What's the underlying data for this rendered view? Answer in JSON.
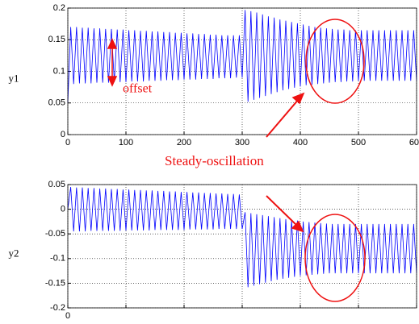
{
  "chart_data": [
    {
      "type": "line",
      "ylabel": "y1",
      "color": "#0000ff",
      "xlim": [
        0,
        600
      ],
      "xticks": [
        0,
        100,
        200,
        300,
        400,
        500,
        600
      ],
      "ylim": [
        0,
        0.2
      ],
      "yticks": [
        0,
        0.05,
        0.1,
        0.15,
        0.2
      ],
      "grid": true,
      "annotations": [
        "offset",
        "Steady-oscillation"
      ],
      "x": [
        0,
        5,
        10,
        15,
        20,
        25,
        30,
        35,
        40,
        45,
        50,
        55,
        60,
        65,
        70,
        75,
        80,
        85,
        90,
        95,
        100,
        105,
        110,
        115,
        120,
        125,
        130,
        135,
        140,
        145,
        150,
        155,
        160,
        165,
        170,
        175,
        180,
        185,
        190,
        195,
        200,
        205,
        210,
        215,
        220,
        225,
        230,
        235,
        240,
        245,
        250,
        255,
        260,
        265,
        270,
        275,
        280,
        285,
        290,
        295,
        300,
        305,
        310,
        315,
        320,
        325,
        330,
        335,
        340,
        345,
        350,
        355,
        360,
        365,
        370,
        375,
        380,
        385,
        390,
        395,
        400,
        405,
        410,
        415,
        420,
        425,
        430,
        435,
        440,
        445,
        450,
        455,
        460,
        465,
        470,
        475,
        480,
        485,
        490,
        495,
        500,
        505,
        510,
        515,
        520,
        525,
        530,
        535,
        540,
        545,
        550,
        555,
        560,
        565,
        570,
        575,
        580,
        585,
        590,
        595,
        600
      ],
      "values": [
        0.05,
        0.17,
        0.08,
        0.17,
        0.081,
        0.169,
        0.081,
        0.169,
        0.081,
        0.168,
        0.082,
        0.168,
        0.082,
        0.167,
        0.082,
        0.167,
        0.083,
        0.166,
        0.083,
        0.166,
        0.083,
        0.165,
        0.084,
        0.165,
        0.084,
        0.164,
        0.084,
        0.164,
        0.085,
        0.163,
        0.085,
        0.163,
        0.085,
        0.162,
        0.086,
        0.162,
        0.086,
        0.161,
        0.086,
        0.161,
        0.087,
        0.16,
        0.087,
        0.16,
        0.087,
        0.159,
        0.088,
        0.159,
        0.088,
        0.158,
        0.088,
        0.158,
        0.089,
        0.157,
        0.089,
        0.157,
        0.089,
        0.157,
        0.09,
        0.157,
        0.09,
        0.197,
        0.052,
        0.195,
        0.055,
        0.193,
        0.058,
        0.19,
        0.061,
        0.187,
        0.064,
        0.185,
        0.067,
        0.182,
        0.07,
        0.18,
        0.072,
        0.178,
        0.074,
        0.176,
        0.076,
        0.174,
        0.078,
        0.172,
        0.079,
        0.17,
        0.08,
        0.169,
        0.081,
        0.168,
        0.082,
        0.167,
        0.083,
        0.166,
        0.083,
        0.166,
        0.084,
        0.165,
        0.084,
        0.165,
        0.085,
        0.165,
        0.085,
        0.165,
        0.085,
        0.165,
        0.085,
        0.165,
        0.085,
        0.165,
        0.085,
        0.165,
        0.085,
        0.165,
        0.085,
        0.165,
        0.085,
        0.165,
        0.085,
        0.165,
        0.085
      ]
    },
    {
      "type": "line",
      "ylabel": "y2",
      "color": "#0000ff",
      "xlim": [
        0,
        600
      ],
      "xticks": [
        0,
        {
          "value": 100,
          "label": null
        },
        {
          "value": 200,
          "label": null
        },
        {
          "value": 300,
          "label": null
        },
        {
          "value": 400,
          "label": null
        },
        {
          "value": 500,
          "label": null
        },
        {
          "value": 600,
          "label": null
        }
      ],
      "ylim": [
        -0.2,
        0.05
      ],
      "yticks": [
        -0.2,
        -0.15,
        -0.1,
        -0.05,
        0,
        0.05
      ],
      "grid": true,
      "x": [
        0,
        5,
        10,
        15,
        20,
        25,
        30,
        35,
        40,
        45,
        50,
        55,
        60,
        65,
        70,
        75,
        80,
        85,
        90,
        95,
        100,
        105,
        110,
        115,
        120,
        125,
        130,
        135,
        140,
        145,
        150,
        155,
        160,
        165,
        170,
        175,
        180,
        185,
        190,
        195,
        200,
        205,
        210,
        215,
        220,
        225,
        230,
        235,
        240,
        245,
        250,
        255,
        260,
        265,
        270,
        275,
        280,
        285,
        290,
        295,
        300,
        305,
        310,
        315,
        320,
        325,
        330,
        335,
        340,
        345,
        350,
        355,
        360,
        365,
        370,
        375,
        380,
        385,
        390,
        395,
        400,
        405,
        410,
        415,
        420,
        425,
        430,
        435,
        440,
        445,
        450,
        455,
        460,
        465,
        470,
        475,
        480,
        485,
        490,
        495,
        500,
        505,
        510,
        515,
        520,
        525,
        530,
        535,
        540,
        545,
        550,
        555,
        560,
        565,
        570,
        575,
        580,
        585,
        590,
        595,
        600
      ],
      "values": [
        0.0,
        0.045,
        -0.045,
        0.044,
        -0.045,
        0.044,
        -0.045,
        0.043,
        -0.044,
        0.043,
        -0.044,
        0.042,
        -0.044,
        0.042,
        -0.044,
        0.041,
        -0.044,
        0.041,
        -0.044,
        0.04,
        -0.043,
        0.04,
        -0.043,
        0.039,
        -0.043,
        0.039,
        -0.043,
        0.038,
        -0.043,
        0.038,
        -0.042,
        0.037,
        -0.042,
        0.037,
        -0.042,
        0.036,
        -0.042,
        0.036,
        -0.042,
        0.035,
        -0.042,
        0.035,
        -0.041,
        0.034,
        -0.041,
        0.034,
        -0.041,
        0.033,
        -0.041,
        0.033,
        -0.041,
        0.032,
        -0.04,
        0.032,
        -0.04,
        0.031,
        -0.04,
        0.031,
        -0.04,
        0.03,
        -0.04,
        -0.006,
        -0.158,
        -0.008,
        -0.155,
        -0.01,
        -0.152,
        -0.012,
        -0.149,
        -0.014,
        -0.146,
        -0.016,
        -0.143,
        -0.018,
        -0.141,
        -0.02,
        -0.139,
        -0.022,
        -0.137,
        -0.023,
        -0.135,
        -0.025,
        -0.134,
        -0.026,
        -0.133,
        -0.027,
        -0.132,
        -0.028,
        -0.131,
        -0.029,
        -0.13,
        -0.03,
        -0.13,
        -0.03,
        -0.13,
        -0.03,
        -0.13,
        -0.03,
        -0.13,
        -0.03,
        -0.13,
        -0.03,
        -0.13,
        -0.03,
        -0.13,
        -0.03,
        -0.13,
        -0.03,
        -0.13,
        -0.03,
        -0.13,
        -0.03,
        -0.13,
        -0.03,
        -0.13,
        -0.03,
        -0.13,
        -0.03,
        -0.13,
        -0.03,
        -0.13
      ]
    }
  ]
}
